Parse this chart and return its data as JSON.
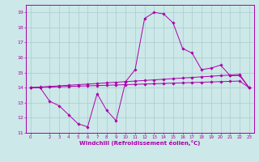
{
  "background_color": "#cce8e8",
  "grid_color": "#aacccc",
  "line_color": "#aa00aa",
  "x_hours": [
    0,
    1,
    2,
    3,
    4,
    5,
    6,
    7,
    8,
    9,
    10,
    11,
    12,
    13,
    14,
    15,
    16,
    17,
    18,
    19,
    20,
    21,
    22,
    23
  ],
  "series1": [
    14.0,
    14.0,
    13.1,
    12.8,
    12.2,
    11.6,
    11.4,
    13.6,
    12.5,
    11.8,
    14.4,
    15.2,
    18.6,
    19.0,
    18.9,
    18.3,
    16.6,
    16.3,
    15.2,
    15.3,
    15.5,
    14.8,
    14.8,
    14.0
  ],
  "series2": [
    14.0,
    14.02,
    14.04,
    14.06,
    14.08,
    14.1,
    14.12,
    14.14,
    14.16,
    14.18,
    14.2,
    14.22,
    14.24,
    14.26,
    14.28,
    14.3,
    14.32,
    14.34,
    14.36,
    14.38,
    14.4,
    14.42,
    14.44,
    14.0
  ],
  "series3": [
    14.0,
    14.04,
    14.08,
    14.12,
    14.16,
    14.2,
    14.24,
    14.28,
    14.32,
    14.36,
    14.4,
    14.44,
    14.48,
    14.52,
    14.56,
    14.6,
    14.64,
    14.68,
    14.72,
    14.76,
    14.8,
    14.84,
    14.88,
    14.0
  ],
  "xlabel": "Windchill (Refroidissement éolien,°C)",
  "ylim": [
    11,
    19.5
  ],
  "xlim": [
    -0.5,
    23.5
  ],
  "yticks": [
    11,
    12,
    13,
    14,
    15,
    16,
    17,
    18,
    19
  ],
  "xticks": [
    0,
    2,
    3,
    4,
    5,
    6,
    7,
    8,
    9,
    10,
    11,
    12,
    13,
    14,
    15,
    16,
    17,
    18,
    19,
    20,
    21,
    22,
    23
  ]
}
